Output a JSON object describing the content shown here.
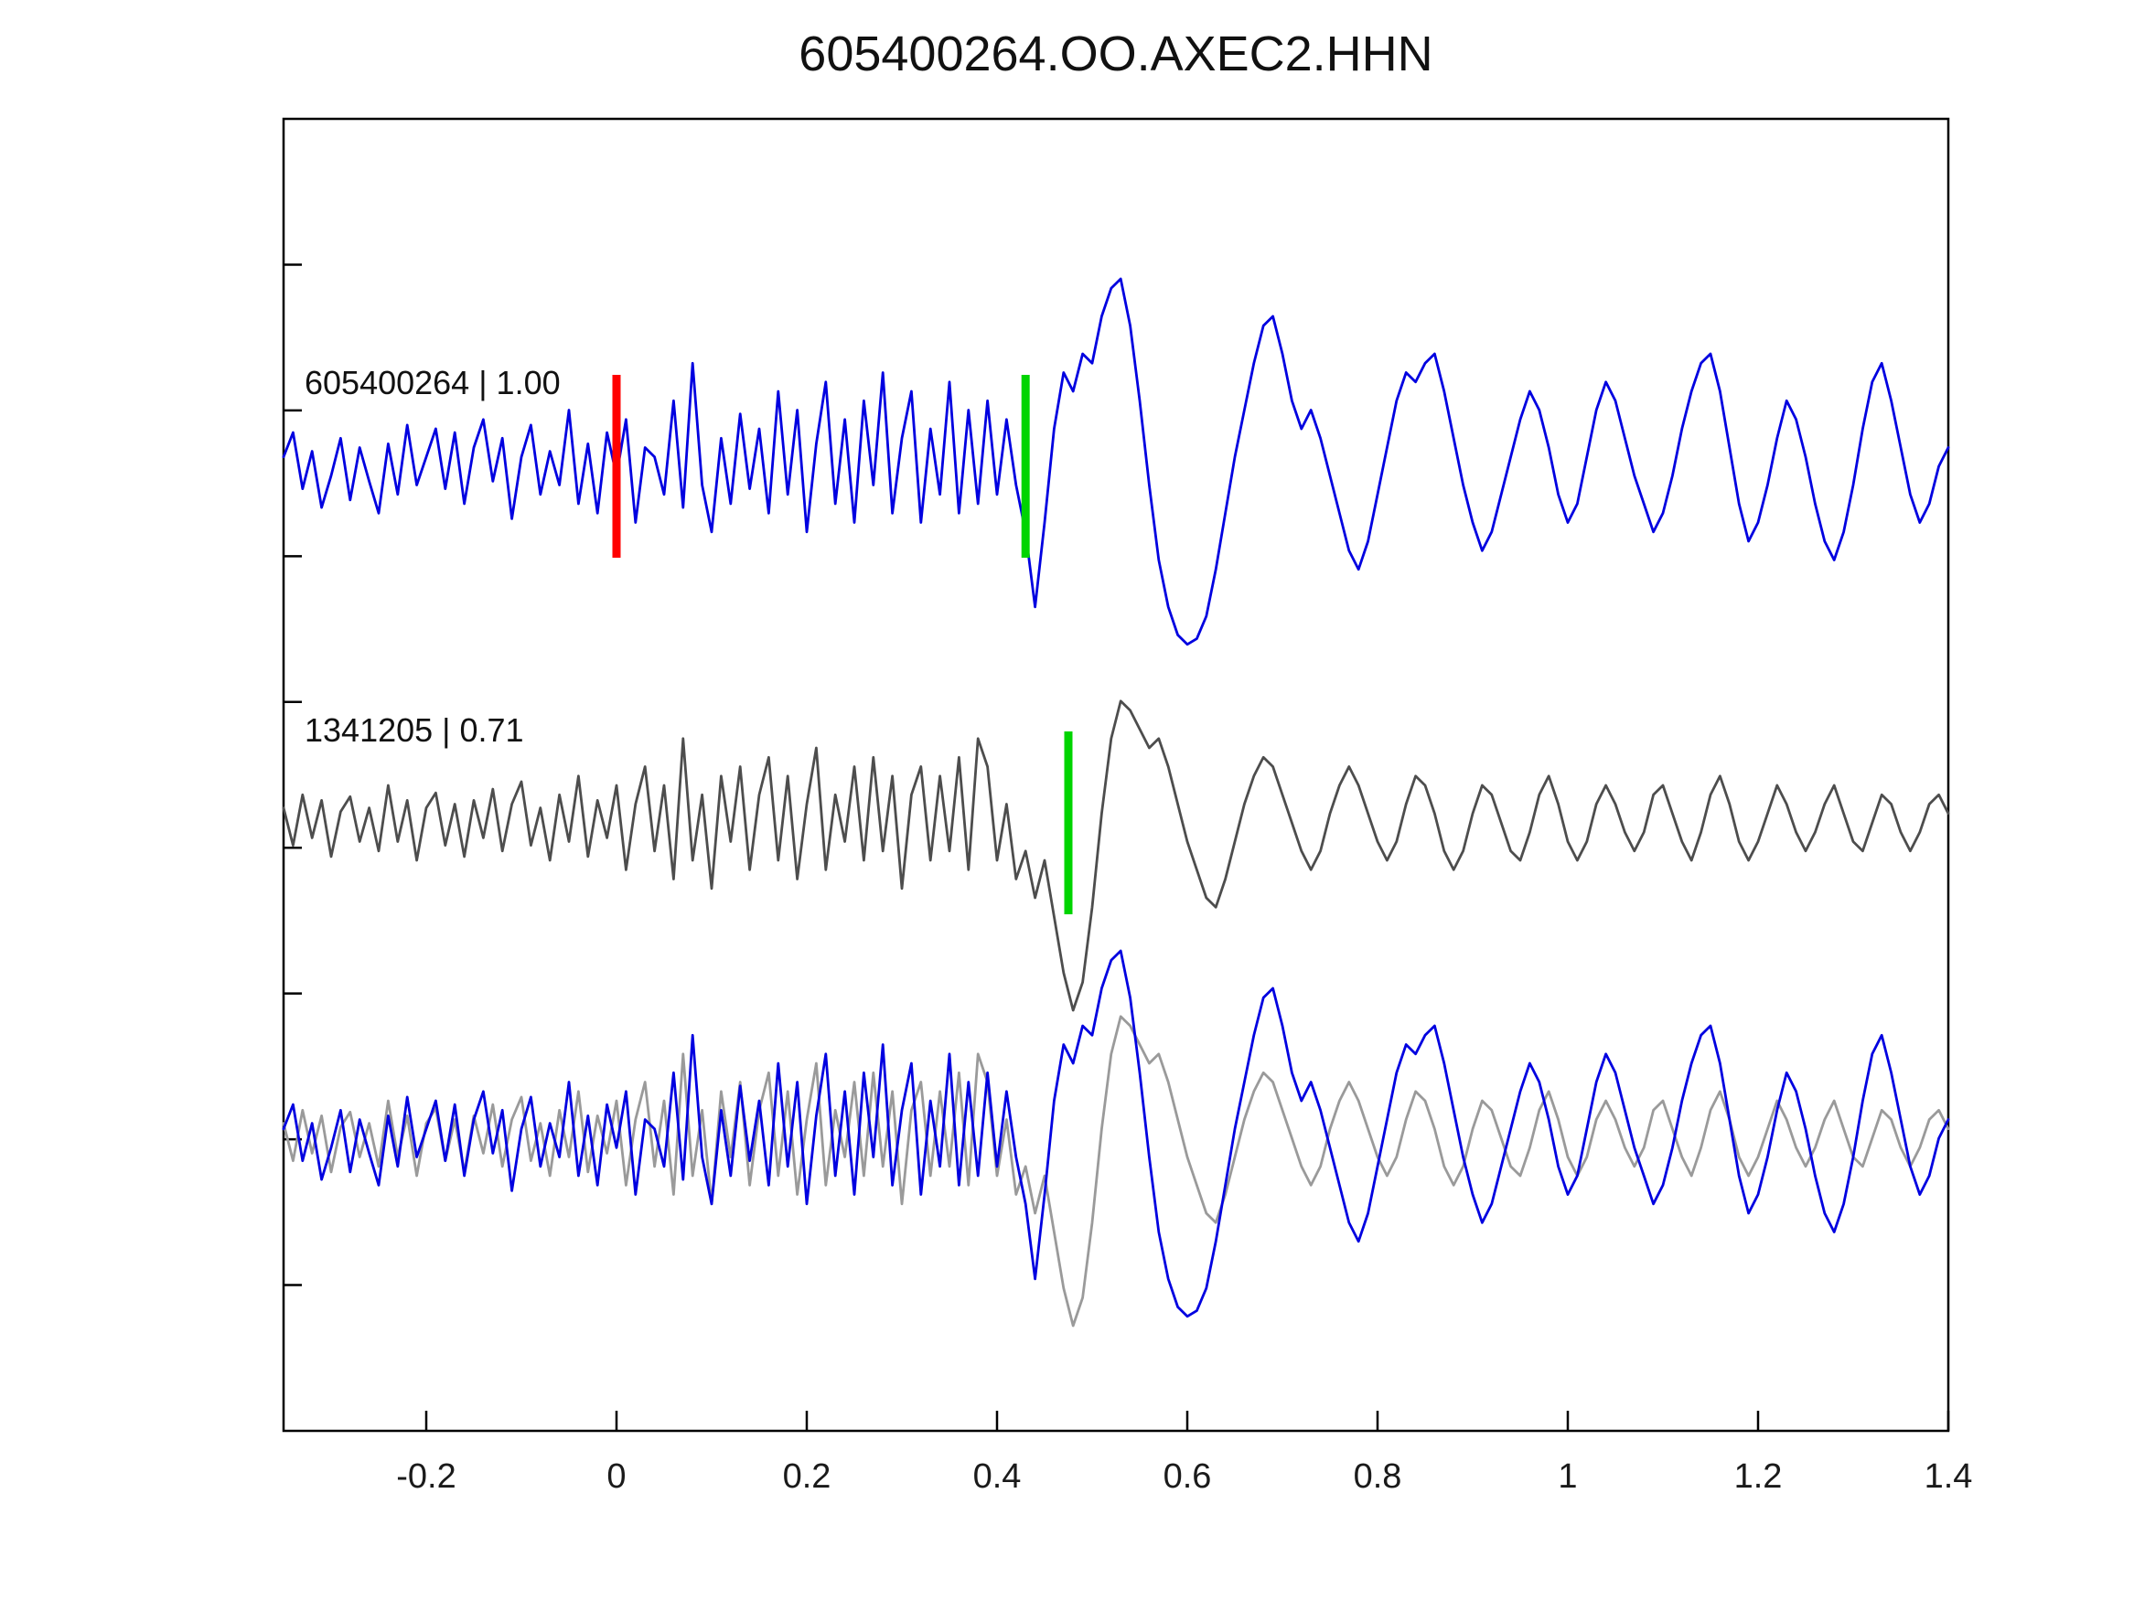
{
  "chart_data": {
    "type": "line",
    "title": "605400264.OO.AXEC2.HHN",
    "xlabel": "",
    "ylabel": "",
    "x_range": [
      -0.35,
      1.4
    ],
    "x_start": -0.35,
    "x_step": 0.01,
    "grid": false,
    "legend_position": "none",
    "x_ticks": [
      {
        "value": -0.2,
        "label": "-0.2"
      },
      {
        "value": 0,
        "label": "0"
      },
      {
        "value": 0.2,
        "label": "0.2"
      },
      {
        "value": 0.4,
        "label": "0.4"
      },
      {
        "value": 0.6,
        "label": "0.6"
      },
      {
        "value": 0.8,
        "label": "0.8"
      },
      {
        "value": 1,
        "label": "1"
      },
      {
        "value": 1.2,
        "label": "1.2"
      },
      {
        "value": 1.4,
        "label": "1.4"
      }
    ],
    "colors": {
      "template_trace": "#0000e0",
      "detection_trace": "#4d4d4d",
      "overlay_gray": "#9a9a9a",
      "pick_red": "#ff0000",
      "pick_green": "#00d400"
    },
    "series": {
      "blue": {
        "name": "605400264",
        "values": [
          0.05,
          0.18,
          -0.12,
          0.08,
          -0.22,
          -0.05,
          0.15,
          -0.18,
          0.1,
          -0.08,
          -0.25,
          0.12,
          -0.15,
          0.22,
          -0.1,
          0.05,
          0.2,
          -0.12,
          0.18,
          -0.2,
          0.1,
          0.25,
          -0.08,
          0.15,
          -0.28,
          0.05,
          0.22,
          -0.15,
          0.08,
          -0.1,
          0.3,
          -0.2,
          0.12,
          -0.25,
          0.18,
          -0.05,
          0.25,
          -0.3,
          0.1,
          0.05,
          -0.15,
          0.35,
          -0.22,
          0.55,
          -0.1,
          -0.35,
          0.15,
          -0.2,
          0.28,
          -0.12,
          0.2,
          -0.25,
          0.4,
          -0.15,
          0.3,
          -0.35,
          0.12,
          0.45,
          -0.2,
          0.25,
          -0.3,
          0.35,
          -0.1,
          0.5,
          -0.25,
          0.15,
          0.4,
          -0.3,
          0.2,
          -0.15,
          0.45,
          -0.25,
          0.3,
          -0.2,
          0.35,
          -0.15,
          0.25,
          -0.1,
          -0.35,
          -0.75,
          -0.3,
          0.2,
          0.5,
          0.4,
          0.6,
          0.55,
          0.8,
          0.95,
          1.0,
          0.75,
          0.35,
          -0.1,
          -0.5,
          -0.75,
          -0.9,
          -0.95,
          -0.92,
          -0.8,
          -0.55,
          -0.25,
          0.05,
          0.3,
          0.55,
          0.75,
          0.8,
          0.6,
          0.35,
          0.2,
          0.3,
          0.15,
          -0.05,
          -0.25,
          -0.45,
          -0.55,
          -0.4,
          -0.15,
          0.1,
          0.35,
          0.5,
          0.45,
          0.55,
          0.6,
          0.4,
          0.15,
          -0.1,
          -0.3,
          -0.45,
          -0.35,
          -0.15,
          0.05,
          0.25,
          0.4,
          0.3,
          0.1,
          -0.15,
          -0.3,
          -0.2,
          0.05,
          0.3,
          0.45,
          0.35,
          0.15,
          -0.05,
          -0.2,
          -0.35,
          -0.25,
          -0.05,
          0.2,
          0.4,
          0.55,
          0.6,
          0.4,
          0.1,
          -0.2,
          -0.4,
          -0.3,
          -0.1,
          0.15,
          0.35,
          0.25,
          0.05,
          -0.2,
          -0.4,
          -0.5,
          -0.35,
          -0.1,
          0.2,
          0.45,
          0.55,
          0.35,
          0.1,
          -0.15,
          -0.3,
          -0.2,
          0.0,
          0.1
        ]
      },
      "gray": {
        "name": "1341205",
        "values": [
          0.08,
          -0.12,
          0.15,
          -0.08,
          0.12,
          -0.18,
          0.06,
          0.14,
          -0.1,
          0.08,
          -0.15,
          0.2,
          -0.1,
          0.12,
          -0.2,
          0.08,
          0.16,
          -0.12,
          0.1,
          -0.18,
          0.12,
          -0.08,
          0.18,
          -0.15,
          0.1,
          0.22,
          -0.12,
          0.08,
          -0.2,
          0.15,
          -0.1,
          0.25,
          -0.18,
          0.12,
          -0.08,
          0.2,
          -0.25,
          0.1,
          0.3,
          -0.15,
          0.2,
          -0.3,
          0.45,
          -0.2,
          0.15,
          -0.35,
          0.25,
          -0.1,
          0.3,
          -0.25,
          0.15,
          0.35,
          -0.2,
          0.25,
          -0.3,
          0.1,
          0.4,
          -0.25,
          0.15,
          -0.1,
          0.3,
          -0.2,
          0.35,
          -0.15,
          0.25,
          -0.35,
          0.15,
          0.3,
          -0.2,
          0.25,
          -0.15,
          0.35,
          -0.25,
          0.45,
          0.3,
          -0.2,
          0.1,
          -0.3,
          -0.15,
          -0.4,
          -0.2,
          -0.5,
          -0.8,
          -1.0,
          -0.85,
          -0.45,
          0.05,
          0.45,
          0.65,
          0.6,
          0.5,
          0.4,
          0.45,
          0.3,
          0.1,
          -0.1,
          -0.25,
          -0.4,
          -0.45,
          -0.3,
          -0.1,
          0.1,
          0.25,
          0.35,
          0.3,
          0.15,
          0.0,
          -0.15,
          -0.25,
          -0.15,
          0.05,
          0.2,
          0.3,
          0.2,
          0.05,
          -0.1,
          -0.2,
          -0.1,
          0.1,
          0.25,
          0.2,
          0.05,
          -0.15,
          -0.25,
          -0.15,
          0.05,
          0.2,
          0.15,
          0.0,
          -0.15,
          -0.2,
          -0.05,
          0.15,
          0.25,
          0.1,
          -0.1,
          -0.2,
          -0.1,
          0.1,
          0.2,
          0.1,
          -0.05,
          -0.15,
          -0.05,
          0.15,
          0.2,
          0.05,
          -0.1,
          -0.2,
          -0.05,
          0.15,
          0.25,
          0.1,
          -0.1,
          -0.2,
          -0.1,
          0.05,
          0.2,
          0.1,
          -0.05,
          -0.15,
          -0.05,
          0.1,
          0.2,
          0.05,
          -0.1,
          -0.15,
          0.0,
          0.15,
          0.1,
          -0.05,
          -0.15,
          -0.05,
          0.1,
          0.15,
          0.05
        ]
      }
    },
    "panels": [
      {
        "name": "template",
        "label": "605400264 | 1.00",
        "traces": [
          {
            "series": "blue",
            "color": "#0000e0"
          }
        ],
        "markers": [
          {
            "x": 0,
            "color": "#ff0000",
            "name": "origin-pick-marker"
          },
          {
            "x": 0.43,
            "color": "#00d400",
            "name": "pick-marker-template"
          }
        ]
      },
      {
        "name": "detection",
        "label": "1341205 | 0.71",
        "traces": [
          {
            "series": "gray",
            "color": "#4d4d4d"
          }
        ],
        "markers": [
          {
            "x": 0.475,
            "color": "#00d400",
            "name": "pick-marker-detection"
          }
        ]
      },
      {
        "name": "overlay",
        "label": "",
        "traces": [
          {
            "series": "gray",
            "color": "#9a9a9a"
          },
          {
            "series": "blue",
            "color": "#0000e0"
          }
        ],
        "markers": []
      }
    ]
  }
}
